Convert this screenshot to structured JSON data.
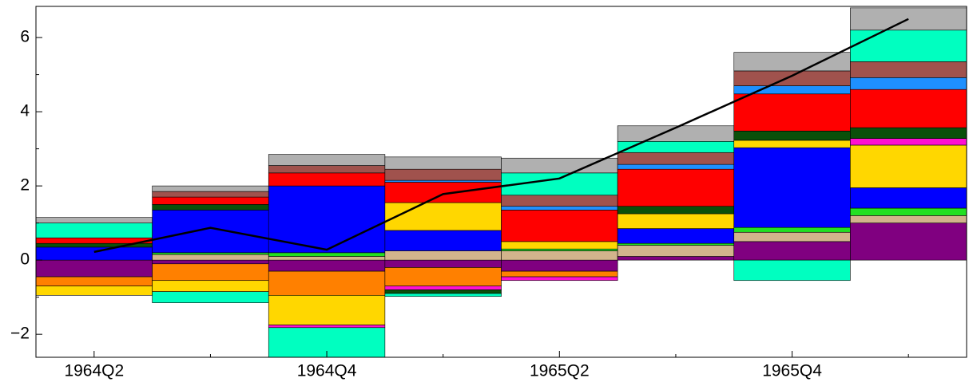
{
  "chart_data": {
    "type": "bar",
    "stacked": true,
    "categories": [
      "1964Q2",
      null,
      "1964Q4",
      null,
      "1965Q2",
      null,
      "1965Q4",
      null
    ],
    "ylim": [
      -2.62,
      6.84
    ],
    "yticks": [
      {
        "value": -2,
        "label": "−2"
      },
      0,
      2,
      4,
      6
    ],
    "yminor": [
      -1,
      1,
      3,
      5
    ],
    "series": [
      {
        "color": "#800080",
        "values": [
          -0.45,
          -0.1,
          -0.3,
          -0.2,
          -0.3,
          0.1,
          0.5,
          1.0
        ]
      },
      {
        "color": "#d2b48c",
        "values": [
          null,
          0.15,
          0.1,
          0.25,
          0.25,
          0.3,
          0.25,
          0.2
        ]
      },
      {
        "color": "#22e022",
        "values": [
          null,
          0.05,
          0.1,
          null,
          0.05,
          0.05,
          0.13,
          0.2
        ]
      },
      {
        "color": "#0000ff",
        "values": [
          0.35,
          1.15,
          1.8,
          0.55,
          null,
          0.4,
          2.15,
          0.55
        ]
      },
      {
        "color": "#ff8000",
        "values": [
          -0.25,
          -0.45,
          -0.65,
          -0.5,
          -0.15,
          null,
          null,
          null
        ]
      },
      {
        "color": "#ffd700",
        "values": [
          -0.25,
          -0.3,
          -0.8,
          0.75,
          0.2,
          0.4,
          0.2,
          1.15
        ]
      },
      {
        "color": "#ff10d0",
        "values": [
          null,
          null,
          -0.07,
          -0.1,
          -0.1,
          null,
          null,
          0.18
        ]
      },
      {
        "color": "#0a500a",
        "values": [
          0.1,
          0.15,
          null,
          -0.1,
          null,
          0.2,
          0.25,
          0.29
        ]
      },
      {
        "color": "#ff0000",
        "values": [
          0.15,
          0.2,
          0.35,
          0.55,
          0.85,
          1.0,
          1.0,
          1.03
        ]
      },
      {
        "color": "#1e90ff",
        "values": [
          null,
          null,
          null,
          0.05,
          0.1,
          0.13,
          0.22,
          0.32
        ]
      },
      {
        "color": "#a0524d",
        "values": [
          null,
          0.15,
          0.2,
          0.3,
          0.3,
          0.32,
          0.4,
          0.43
        ]
      },
      {
        "color": "#00ffc0",
        "values": [
          0.4,
          -0.3,
          -0.9,
          -0.08,
          0.6,
          0.3,
          -0.55,
          0.85
        ]
      },
      {
        "color": "#b0b0b0",
        "values": [
          0.15,
          0.15,
          0.3,
          0.33,
          0.4,
          0.42,
          0.5,
          0.6
        ]
      }
    ],
    "line": {
      "color": "#000000",
      "values": [
        0.22,
        0.87,
        0.28,
        1.78,
        2.2,
        3.57,
        4.97,
        6.5
      ]
    }
  }
}
